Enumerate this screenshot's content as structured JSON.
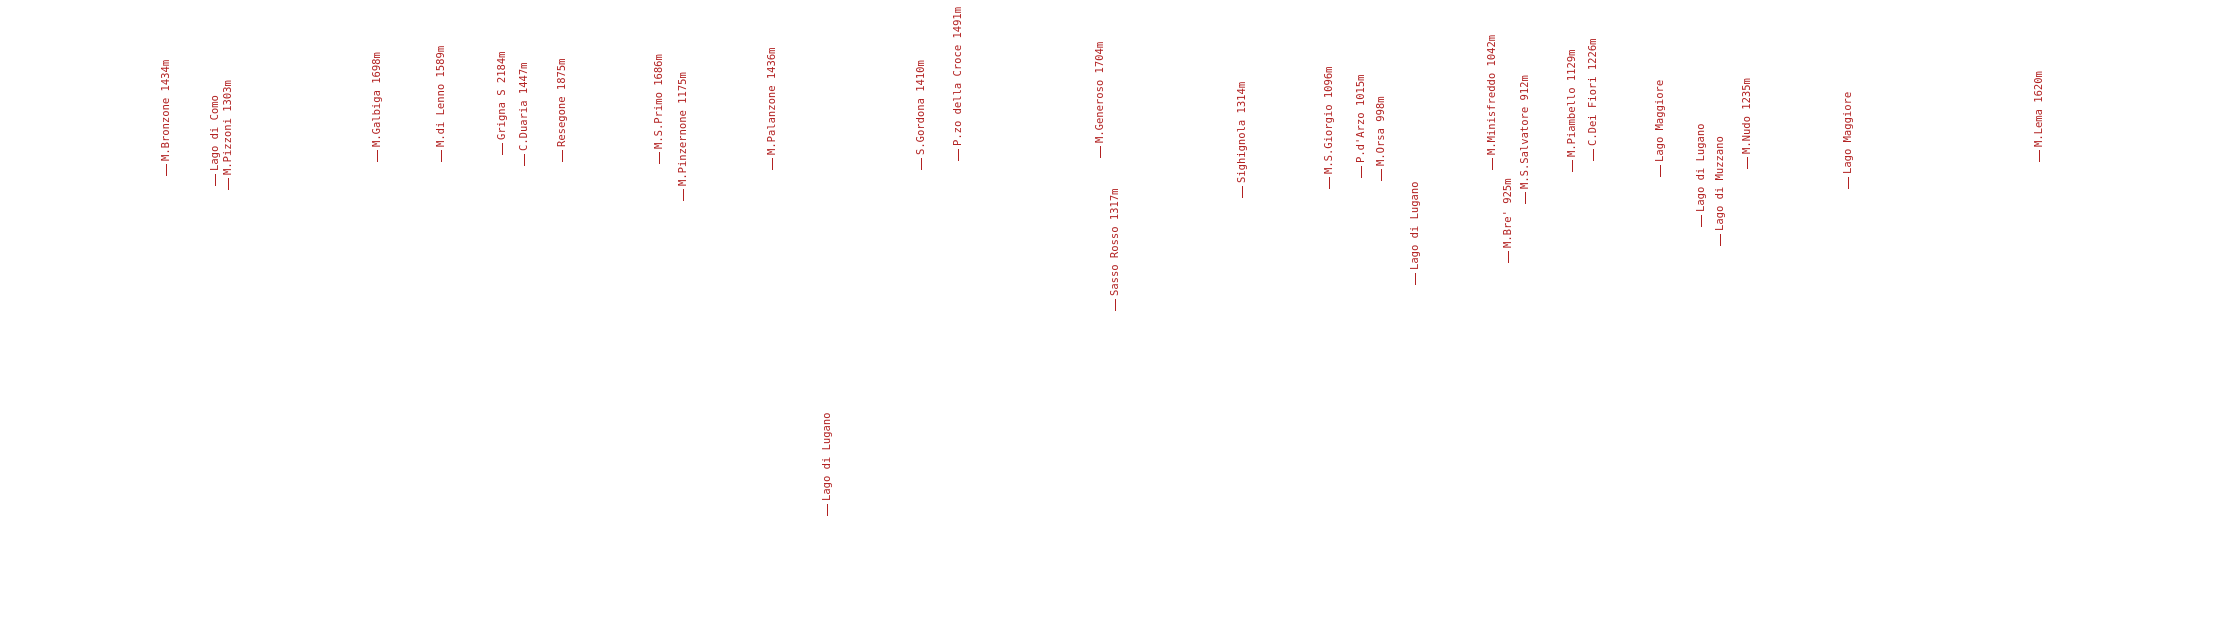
{
  "colors": {
    "label": "#b22222",
    "background": "#ffffff"
  },
  "labels": [
    {
      "text": "M.Bronzone 1434m"
    },
    {
      "text": "Lago di Como"
    },
    {
      "text": "M.Pizzoni 1303m"
    },
    {
      "text": "M.Galbiga 1698m"
    },
    {
      "text": "M.di Lenno 1589m"
    },
    {
      "text": "Grigna S 2184m"
    },
    {
      "text": "C.Duaria 1447m"
    },
    {
      "text": "Resegone 1875m"
    },
    {
      "text": "M.S.Primo 1686m"
    },
    {
      "text": "M.Pinzernone 1175m"
    },
    {
      "text": "M.Palanzone 1436m"
    },
    {
      "text": "Lago di Lugano"
    },
    {
      "text": "S.Gordona 1410m"
    },
    {
      "text": "P.zo della Croce 1491m"
    },
    {
      "text": "M.Generoso 1704m"
    },
    {
      "text": "Sasso Rosso 1317m"
    },
    {
      "text": "Sighignola 1314m"
    },
    {
      "text": "M.S.Giorgio 1096m"
    },
    {
      "text": "P.d'Arzo 1015m"
    },
    {
      "text": "M.Orsa 998m"
    },
    {
      "text": "Lago di Lugano"
    },
    {
      "text": "M.Minisfreddo 1042m"
    },
    {
      "text": "M.Bre' 925m"
    },
    {
      "text": "M.S.Salvatore 912m"
    },
    {
      "text": "M.Piambello 1129m"
    },
    {
      "text": "C.Dei Fiori 1226m"
    },
    {
      "text": "Lago Maggiore"
    },
    {
      "text": "Lago di Lugano"
    },
    {
      "text": "Lago di Muzzano"
    },
    {
      "text": "M.Nudo 1235m"
    },
    {
      "text": "Lago Maggiore"
    },
    {
      "text": "M.Lema 1620m"
    }
  ]
}
